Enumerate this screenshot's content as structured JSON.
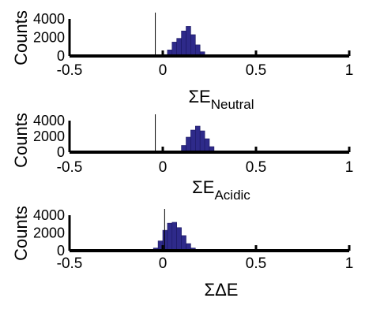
{
  "colors": {
    "bar": "#2e2a8a",
    "bar_edge": "#1a1760",
    "axis": "#000000",
    "marker": "#000000"
  },
  "chart_data": [
    {
      "type": "bar",
      "ylabel": "Counts",
      "xlabel": {
        "main": "ΣE",
        "sub": "Neutral"
      },
      "xlim": [
        -0.5,
        1
      ],
      "ylim": [
        0,
        4000
      ],
      "xticks": [
        "-0.5",
        "0",
        "0.5",
        "1"
      ],
      "xtick_values": [
        -0.5,
        0,
        0.5,
        1
      ],
      "yticks": [
        "0",
        "2000",
        "4000"
      ],
      "ytick_values": [
        0,
        2000,
        4000
      ],
      "bin_width": 0.025,
      "bins": [
        {
          "x": 0.0,
          "value": 150
        },
        {
          "x": 0.025,
          "value": 650
        },
        {
          "x": 0.05,
          "value": 1500
        },
        {
          "x": 0.075,
          "value": 1900
        },
        {
          "x": 0.1,
          "value": 2700
        },
        {
          "x": 0.125,
          "value": 3200
        },
        {
          "x": 0.15,
          "value": 2300
        },
        {
          "x": 0.175,
          "value": 1200
        },
        {
          "x": 0.2,
          "value": 450
        },
        {
          "x": 0.225,
          "value": 100
        }
      ],
      "marker_x": -0.04
    },
    {
      "type": "bar",
      "ylabel": "Counts",
      "xlabel": {
        "main": "ΣE",
        "sub": "Acidic"
      },
      "xlim": [
        -0.5,
        1
      ],
      "ylim": [
        0,
        4000
      ],
      "xticks": [
        "-0.5",
        "0",
        "0.5",
        "1"
      ],
      "xtick_values": [
        -0.5,
        0,
        0.5,
        1
      ],
      "yticks": [
        "0",
        "2000",
        "4000"
      ],
      "ytick_values": [
        0,
        2000,
        4000
      ],
      "bin_width": 0.025,
      "bins": [
        {
          "x": 0.0,
          "value": 80
        },
        {
          "x": 0.075,
          "value": 120
        },
        {
          "x": 0.1,
          "value": 850
        },
        {
          "x": 0.125,
          "value": 1900
        },
        {
          "x": 0.15,
          "value": 2800
        },
        {
          "x": 0.175,
          "value": 3300
        },
        {
          "x": 0.2,
          "value": 2700
        },
        {
          "x": 0.225,
          "value": 1700
        },
        {
          "x": 0.25,
          "value": 700
        },
        {
          "x": 0.275,
          "value": 150
        }
      ],
      "marker_x": -0.04
    },
    {
      "type": "bar",
      "ylabel": "Counts",
      "xlabel": {
        "main": "ΣΔE",
        "sub": ""
      },
      "xlim": [
        -0.5,
        1
      ],
      "ylim": [
        0,
        4000
      ],
      "xticks": [
        "-0.5",
        "0",
        "0.5",
        "1"
      ],
      "xtick_values": [
        -0.5,
        0,
        0.5,
        1
      ],
      "yticks": [
        "0",
        "2000",
        "4000"
      ],
      "ytick_values": [
        0,
        2000,
        4000
      ],
      "bin_width": 0.025,
      "bins": [
        {
          "x": -0.075,
          "value": 80
        },
        {
          "x": -0.05,
          "value": 300
        },
        {
          "x": -0.025,
          "value": 1100
        },
        {
          "x": 0.0,
          "value": 2300
        },
        {
          "x": 0.025,
          "value": 3100
        },
        {
          "x": 0.05,
          "value": 3200
        },
        {
          "x": 0.075,
          "value": 2600
        },
        {
          "x": 0.1,
          "value": 1700
        },
        {
          "x": 0.125,
          "value": 800
        },
        {
          "x": 0.15,
          "value": 300
        },
        {
          "x": 0.175,
          "value": 80
        }
      ],
      "marker_x": 0.01
    }
  ]
}
